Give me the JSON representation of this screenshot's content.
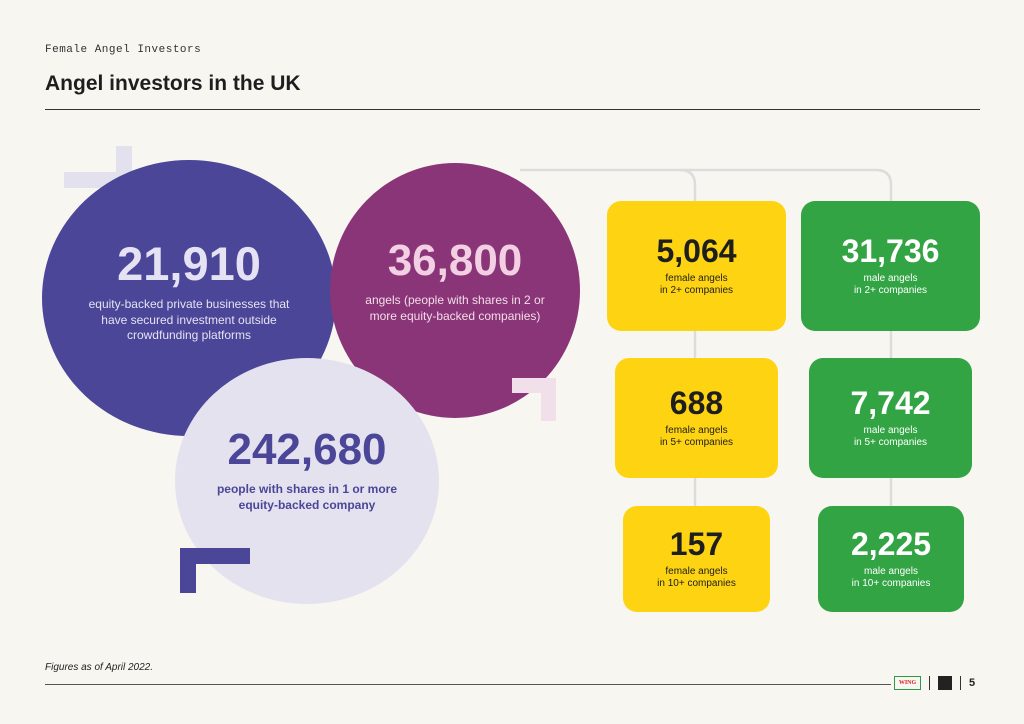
{
  "header": {
    "kicker": "Female Angel Investors",
    "title": "Angel investors in the UK"
  },
  "circles": {
    "businesses": {
      "value": "21,910",
      "desc": "equity-backed private businesses that have secured investment outside crowdfunding platforms"
    },
    "angels": {
      "value": "36,800",
      "desc": "angels (people with shares in 2 or more equity-backed companies)"
    },
    "people": {
      "value": "242,680",
      "desc": "people with shares in 1 or more equity-backed company"
    }
  },
  "female": [
    {
      "value": "5,064",
      "line1": "female angels",
      "line2": "in 2+ companies"
    },
    {
      "value": "688",
      "line1": "female angels",
      "line2": "in 5+ companies"
    },
    {
      "value": "157",
      "line1": "female angels",
      "line2": "in 10+ companies"
    }
  ],
  "male": [
    {
      "value": "31,736",
      "line1": "male angels",
      "line2": "in 2+ companies"
    },
    {
      "value": "7,742",
      "line1": "male angels",
      "line2": "in 5+ companies"
    },
    {
      "value": "2,225",
      "line1": "male angels",
      "line2": "in 10+ companies"
    }
  ],
  "footer": {
    "note": "Figures as of April 2022.",
    "logo_text": "WING",
    "page": "5"
  },
  "colors": {
    "indigo": "#4b4698",
    "plum": "#8a3578",
    "lavender": "#e4e2ef",
    "yellow": "#fed412",
    "green": "#32a444"
  }
}
